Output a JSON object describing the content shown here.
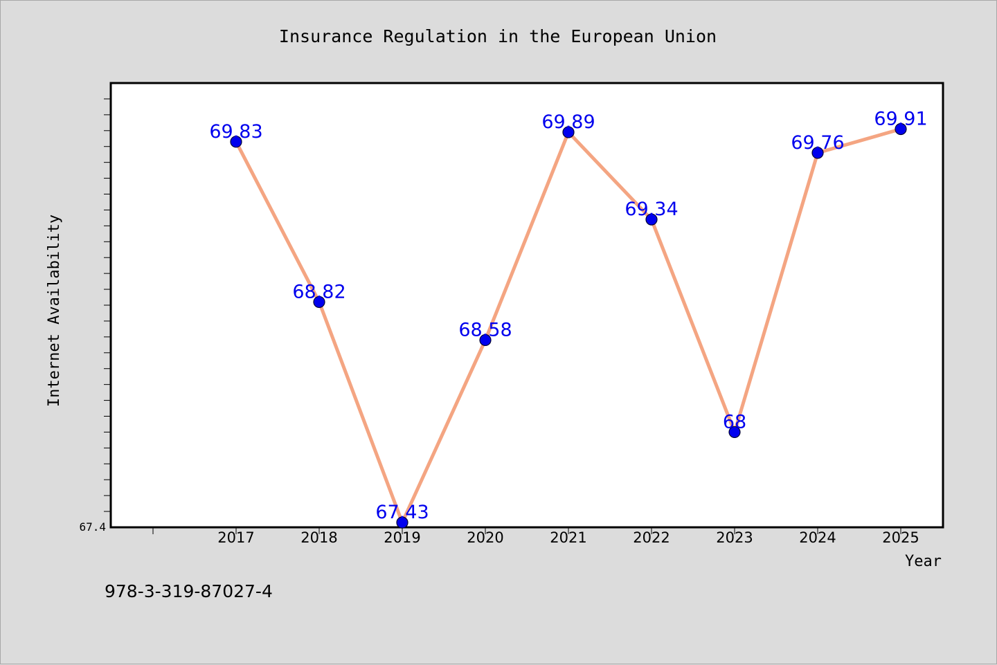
{
  "chart_data": {
    "type": "line",
    "title": "Insurance Regulation in the European Union",
    "xlabel": "Year",
    "ylabel": "Internet Availability",
    "categories": [
      "2017",
      "2018",
      "2019",
      "2020",
      "2021",
      "2022",
      "2023",
      "2024",
      "2025"
    ],
    "series": [
      {
        "values": [
          69.83,
          68.82,
          67.43,
          68.58,
          69.89,
          69.34,
          68.0,
          69.76,
          69.91
        ],
        "data_labels": [
          "69.83",
          "68.82",
          "67.43",
          "68.58",
          "69.89",
          "69.34",
          "68",
          "69.76",
          "69.91"
        ]
      }
    ],
    "ylim": [
      67.4,
      70.2
    ],
    "yticks_labeled": [
      "67.4"
    ],
    "grid": false,
    "line_color": "#f4a582",
    "marker_color": "#0000ee",
    "label_color": "#0000ee"
  },
  "footer": {
    "isbn": "978-3-319-87027-4"
  }
}
